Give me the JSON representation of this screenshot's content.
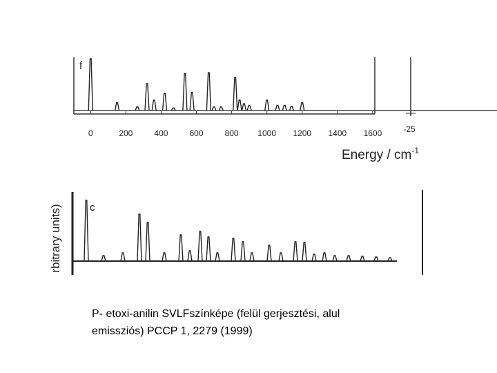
{
  "chart_data": [
    {
      "type": "spectrum",
      "panel_label": "f",
      "xlabel": "Energy / cm",
      "xlabel_exponent": "-1",
      "xlim": [
        -95,
        1612
      ],
      "xticks": [
        0,
        200,
        400,
        600,
        800,
        1000,
        1200,
        1400,
        1600
      ],
      "right_panel_xticks": [
        -25
      ],
      "x": [
        0,
        150,
        265,
        320,
        360,
        420,
        470,
        535,
        575,
        670,
        700,
        740,
        820,
        845,
        870,
        900,
        1000,
        1060,
        1100,
        1140,
        1200
      ],
      "values": [
        1.0,
        0.15,
        0.07,
        0.52,
        0.2,
        0.33,
        0.05,
        0.71,
        0.35,
        0.73,
        0.07,
        0.07,
        0.64,
        0.2,
        0.13,
        0.1,
        0.2,
        0.1,
        0.1,
        0.08,
        0.15
      ],
      "color": "#222"
    },
    {
      "type": "spectrum",
      "panel_label": "c",
      "ylabel": "rbitrary units)",
      "xlim": [
        -20,
        487
      ],
      "x": [
        0,
        25,
        53,
        77,
        89,
        113,
        137,
        150,
        165,
        177,
        190,
        213,
        227,
        240,
        265,
        282,
        303,
        316,
        330,
        345,
        360,
        380,
        400,
        420,
        440
      ],
      "values": [
        0.88,
        0.08,
        0.12,
        0.68,
        0.56,
        0.12,
        0.38,
        0.15,
        0.43,
        0.35,
        0.12,
        0.33,
        0.28,
        0.12,
        0.23,
        0.12,
        0.28,
        0.27,
        0.1,
        0.12,
        0.08,
        0.08,
        0.07,
        0.06,
        0.05
      ],
      "color": "#222"
    }
  ],
  "caption": {
    "lines": [
      "P- etoxi-anilin SVLFszínképe (felül gerjesztési, alul",
      "emissziós) PCCP 1, 2279 (1999)"
    ]
  }
}
